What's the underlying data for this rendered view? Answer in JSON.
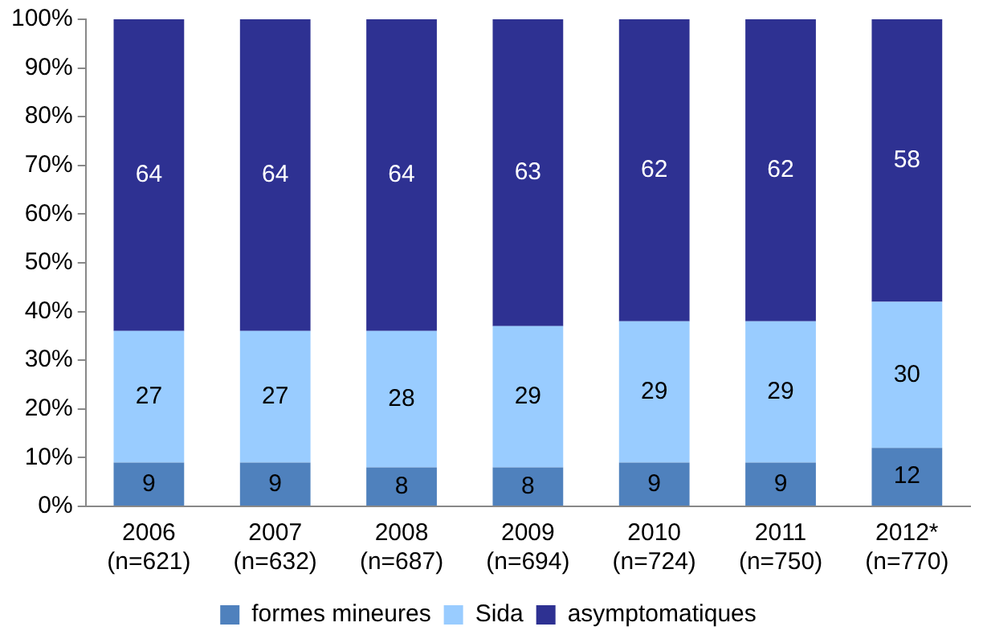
{
  "chart_data": {
    "type": "bar",
    "stacked": true,
    "data_labels": true,
    "grid": false,
    "legend": "bottom",
    "categories": [
      "2006\n(n=621)",
      "2007\n(n=632)",
      "2008\n(n=687)",
      "2009\n(n=694)",
      "2010\n(n=724)",
      "2011\n(n=750)",
      "2012*\n(n=770)"
    ],
    "series": [
      {
        "name": "formes mineures",
        "color": "#4f81bd",
        "values": [
          9,
          9,
          8,
          8,
          9,
          9,
          12
        ]
      },
      {
        "name": "Sida",
        "color": "#99ccff",
        "values": [
          27,
          27,
          28,
          29,
          29,
          29,
          30
        ]
      },
      {
        "name": "asymptomatiques",
        "color": "#2e3192",
        "values": [
          64,
          64,
          64,
          63,
          62,
          62,
          58
        ]
      }
    ],
    "ylim": [
      0,
      100
    ],
    "yticks": [
      {
        "value": 0,
        "label": "0%"
      },
      {
        "value": 10,
        "label": "10%"
      },
      {
        "value": 20,
        "label": "20%"
      },
      {
        "value": 30,
        "label": "30%"
      },
      {
        "value": 40,
        "label": "40%"
      },
      {
        "value": 50,
        "label": "50%"
      },
      {
        "value": 60,
        "label": "60%"
      },
      {
        "value": 70,
        "label": "70%"
      },
      {
        "value": 80,
        "label": "80%"
      },
      {
        "value": 90,
        "label": "90%"
      },
      {
        "value": 100,
        "label": "100%"
      }
    ]
  }
}
